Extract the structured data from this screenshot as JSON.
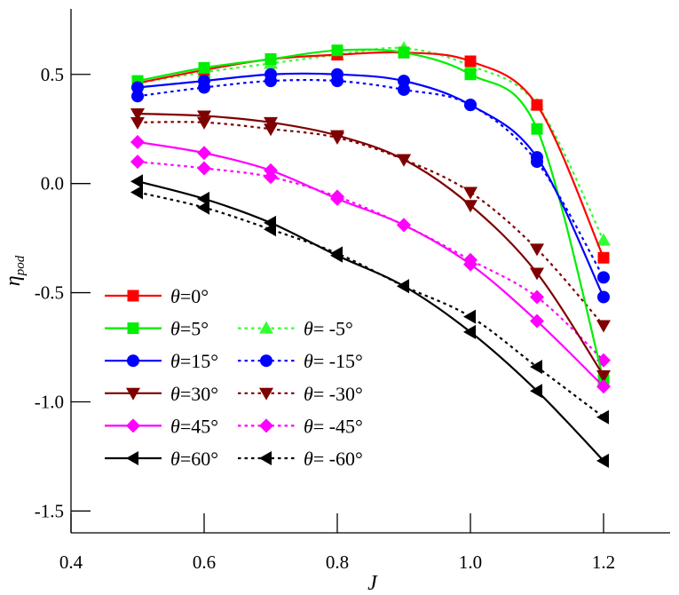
{
  "chart_data": {
    "type": "line",
    "title": "",
    "xlabel": "J",
    "ylabel": "η",
    "ylabel_subscript": "pod",
    "xlim": [
      0.4,
      1.3
    ],
    "ylim": [
      -1.6,
      0.8
    ],
    "xticks": [
      0.4,
      0.6,
      0.8,
      1.0,
      1.2
    ],
    "xtick_labels": [
      "0.4",
      "0.6",
      "0.8",
      "1.0",
      "1.2"
    ],
    "yticks": [
      0.5,
      0.0,
      -0.5,
      -1.0,
      -1.5
    ],
    "ytick_labels": [
      "0.5",
      "0.0",
      "-0.5",
      "-1.0",
      "-1.5"
    ],
    "grid": false,
    "legend_position": "bottom-left",
    "x": [
      0.5,
      0.6,
      0.7,
      0.8,
      0.9,
      1.0,
      1.1,
      1.2
    ],
    "series": [
      {
        "name": "θ=0°",
        "symbol": "θ",
        "value": "=0°",
        "color": "#ff0000",
        "marker": "square",
        "style": "solid",
        "values": [
          0.46,
          0.52,
          0.57,
          0.59,
          0.6,
          0.56,
          0.36,
          -0.34
        ]
      },
      {
        "name": "θ=5°",
        "symbol": "θ",
        "value": "=5°",
        "color": "#00ee00",
        "marker": "square",
        "style": "solid",
        "values": [
          0.47,
          0.53,
          0.57,
          0.61,
          0.6,
          0.5,
          0.25,
          -0.9
        ]
      },
      {
        "name": "θ= -5°",
        "symbol": "θ",
        "value": "= -5°",
        "color": "#33ff33",
        "marker": "triangle-up",
        "style": "dotted",
        "values": [
          0.46,
          0.51,
          0.55,
          0.59,
          0.62,
          0.54,
          0.36,
          -0.26
        ]
      },
      {
        "name": "θ=15°",
        "symbol": "θ",
        "value": "=15°",
        "color": "#0000ff",
        "marker": "circle",
        "style": "solid",
        "values": [
          0.44,
          0.47,
          0.5,
          0.5,
          0.47,
          0.36,
          0.12,
          -0.52
        ]
      },
      {
        "name": "θ= -15°",
        "symbol": "θ",
        "value": "= -15°",
        "color": "#0000ff",
        "marker": "circle",
        "style": "dotted",
        "values": [
          0.4,
          0.44,
          0.47,
          0.47,
          0.43,
          0.36,
          0.1,
          -0.43
        ]
      },
      {
        "name": "θ=30°",
        "symbol": "θ",
        "value": "=30°",
        "color": "#7f0000",
        "marker": "triangle-down",
        "style": "solid",
        "values": [
          0.32,
          0.31,
          0.28,
          0.22,
          0.11,
          -0.1,
          -0.41,
          -0.88
        ]
      },
      {
        "name": "θ= -30°",
        "symbol": "θ",
        "value": "= -30°",
        "color": "#7f0000",
        "marker": "triangle-down",
        "style": "dotted",
        "values": [
          0.28,
          0.28,
          0.25,
          0.21,
          0.11,
          -0.04,
          -0.3,
          -0.65
        ]
      },
      {
        "name": "θ=45°",
        "symbol": "θ",
        "value": "=45°",
        "color": "#ff00ff",
        "marker": "diamond",
        "style": "solid",
        "values": [
          0.19,
          0.14,
          0.06,
          -0.07,
          -0.19,
          -0.37,
          -0.63,
          -0.93
        ]
      },
      {
        "name": "θ= -45°",
        "symbol": "θ",
        "value": "= -45°",
        "color": "#ff00ff",
        "marker": "diamond",
        "style": "dotted",
        "values": [
          0.1,
          0.07,
          0.03,
          -0.06,
          -0.19,
          -0.35,
          -0.52,
          -0.81
        ]
      },
      {
        "name": "θ=60°",
        "symbol": "θ",
        "value": "=60°",
        "color": "#000000",
        "marker": "triangle-left",
        "style": "solid",
        "values": [
          0.01,
          -0.07,
          -0.18,
          -0.33,
          -0.47,
          -0.68,
          -0.95,
          -1.27
        ]
      },
      {
        "name": "θ= -60°",
        "symbol": "θ",
        "value": "= -60°",
        "color": "#000000",
        "marker": "triangle-left",
        "style": "dotted",
        "values": [
          -0.04,
          -0.11,
          -0.21,
          -0.32,
          -0.47,
          -0.61,
          -0.84,
          -1.07
        ]
      }
    ],
    "legend": [
      {
        "left": 0,
        "right": null
      },
      {
        "left": 1,
        "right": 2
      },
      {
        "left": 3,
        "right": 4
      },
      {
        "left": 5,
        "right": 6
      },
      {
        "left": 7,
        "right": 8
      },
      {
        "left": 9,
        "right": 10
      }
    ]
  }
}
